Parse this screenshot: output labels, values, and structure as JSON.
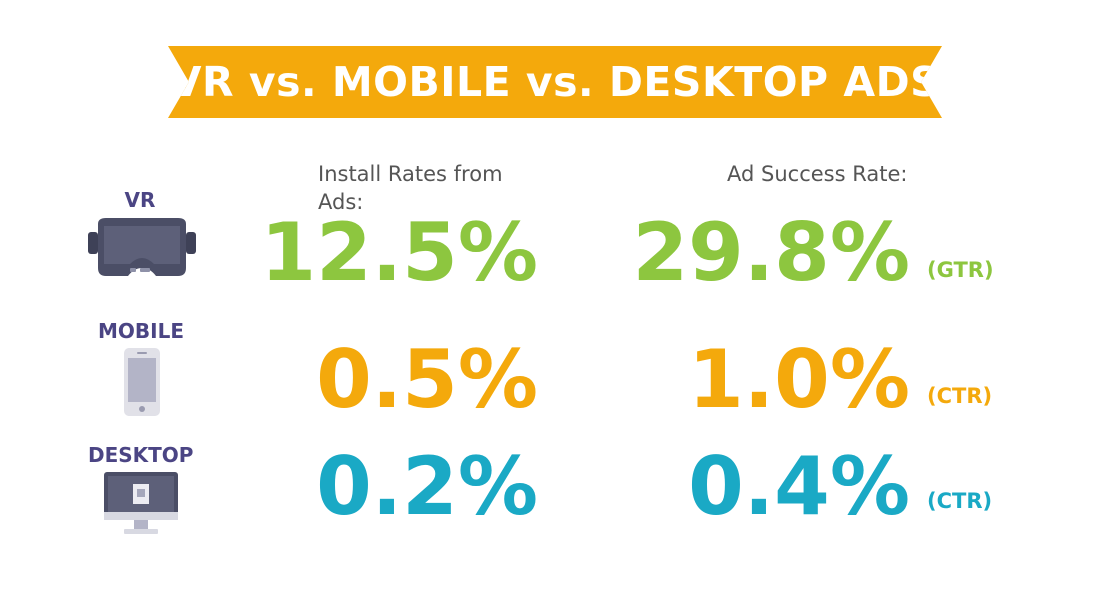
{
  "title": "VR vs. MOBILE vs. DESKTOP ADS",
  "headers": {
    "install": "Install Rates from Ads:",
    "success": "Ad Success Rate:"
  },
  "colors": {
    "banner": "#f4a90c",
    "vr": "#8dc63f",
    "mobile": "#f4a90c",
    "desktop": "#1aa9c5",
    "device_label": "#4b4584"
  },
  "rows": [
    {
      "device": "VR",
      "icon": "vr-headset-icon",
      "install": "12.5%",
      "success": "29.8%",
      "metric": "(GTR)"
    },
    {
      "device": "MOBILE",
      "icon": "smartphone-icon",
      "install": "0.5%",
      "success": "1.0%",
      "metric": "(CTR)"
    },
    {
      "device": "DESKTOP",
      "icon": "desktop-monitor-icon",
      "install": "0.2%",
      "success": "0.4%",
      "metric": "(CTR)"
    }
  ],
  "chart_data": {
    "type": "table",
    "title": "VR vs. MOBILE vs. DESKTOP ADS",
    "columns": [
      "Install Rates from Ads:",
      "Ad Success Rate:"
    ],
    "categories": [
      "VR",
      "MOBILE",
      "DESKTOP"
    ],
    "series": [
      {
        "name": "Install Rates from Ads:",
        "values": [
          12.5,
          0.5,
          0.2
        ],
        "unit": "%"
      },
      {
        "name": "Ad Success Rate:",
        "values": [
          29.8,
          1.0,
          0.4
        ],
        "unit": "%",
        "metrics": [
          "(GTR)",
          "(CTR)",
          "(CTR)"
        ]
      }
    ]
  }
}
